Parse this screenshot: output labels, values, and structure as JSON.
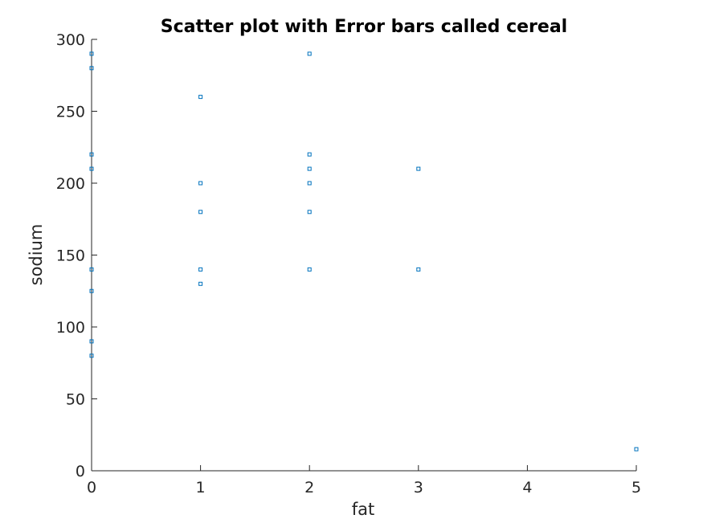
{
  "chart_data": {
    "type": "scatter",
    "title": "Scatter plot with Error bars called cereal",
    "xlabel": "fat",
    "ylabel": "sodium",
    "xlim": [
      0,
      5
    ],
    "ylim": [
      0,
      300
    ],
    "xticks": [
      0,
      1,
      2,
      3,
      4,
      5
    ],
    "yticks": [
      0,
      50,
      100,
      150,
      200,
      250,
      300
    ],
    "grid": false,
    "marker": "square",
    "color": "#0072BD",
    "points": [
      {
        "x": 0,
        "y": 290
      },
      {
        "x": 0,
        "y": 280
      },
      {
        "x": 0,
        "y": 220
      },
      {
        "x": 0,
        "y": 210
      },
      {
        "x": 0,
        "y": 140
      },
      {
        "x": 0,
        "y": 125
      },
      {
        "x": 0,
        "y": 90
      },
      {
        "x": 0,
        "y": 80
      },
      {
        "x": 1,
        "y": 260
      },
      {
        "x": 1,
        "y": 200
      },
      {
        "x": 1,
        "y": 180
      },
      {
        "x": 1,
        "y": 140
      },
      {
        "x": 1,
        "y": 130
      },
      {
        "x": 2,
        "y": 290
      },
      {
        "x": 2,
        "y": 220
      },
      {
        "x": 2,
        "y": 210
      },
      {
        "x": 2,
        "y": 200
      },
      {
        "x": 2,
        "y": 180
      },
      {
        "x": 2,
        "y": 140
      },
      {
        "x": 3,
        "y": 210
      },
      {
        "x": 3,
        "y": 140
      },
      {
        "x": 5,
        "y": 15
      }
    ]
  }
}
